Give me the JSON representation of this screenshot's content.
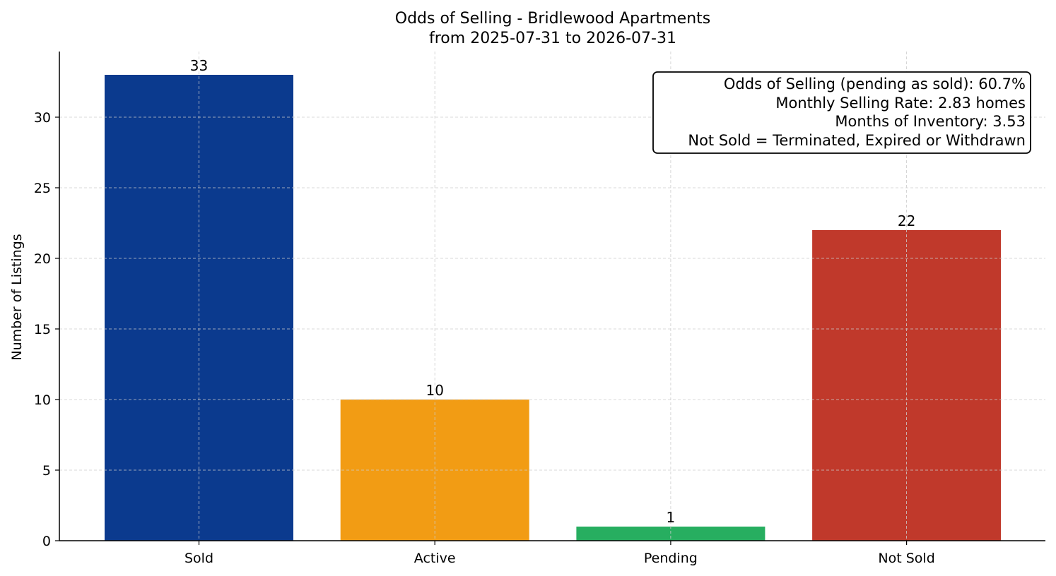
{
  "chart_data": {
    "type": "bar",
    "title": "Odds of Selling - Bridlewood Apartments",
    "subtitle": "from 2025-07-31 to 2026-07-31",
    "xlabel": "",
    "ylabel": "Number of Listings",
    "categories": [
      "Sold",
      "Active",
      "Pending",
      "Not Sold"
    ],
    "values": [
      33,
      10,
      1,
      22
    ],
    "data_labels": [
      "33",
      "10",
      "1",
      "22"
    ],
    "colors": [
      "#0b3a8e",
      "#f29c14",
      "#27ae60",
      "#c0392b"
    ],
    "ylim": [
      0,
      34.65
    ],
    "yticks": [
      0,
      5,
      10,
      15,
      20,
      25,
      30
    ],
    "grid": true,
    "annotation": {
      "lines": [
        "Odds of Selling (pending as sold): 60.7%",
        "Monthly Selling Rate: 2.83 homes",
        "Months of Inventory: 3.53",
        "Not Sold = Terminated, Expired or Withdrawn"
      ],
      "placement": "top-right"
    }
  }
}
